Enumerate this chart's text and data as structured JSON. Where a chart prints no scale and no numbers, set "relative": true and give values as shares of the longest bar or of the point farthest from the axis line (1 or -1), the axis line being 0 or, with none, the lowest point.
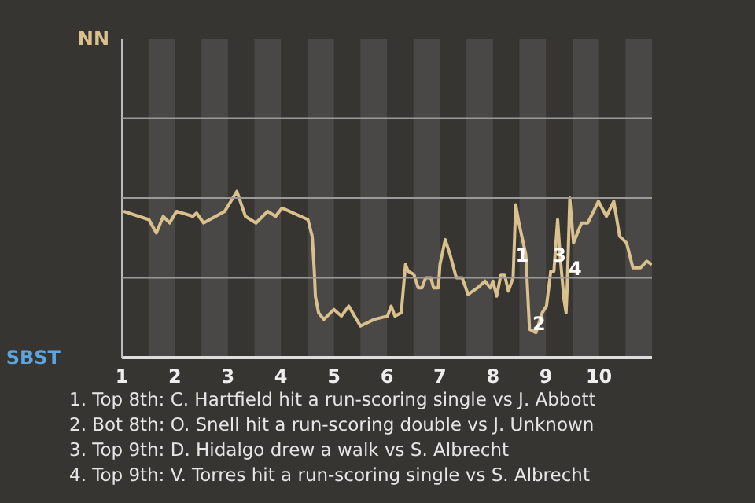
{
  "chart_data": {
    "type": "line",
    "relative": true,
    "xlim": [
      1,
      11
    ],
    "xticks": [
      1,
      2,
      3,
      4,
      5,
      6,
      7,
      8,
      9,
      10
    ],
    "ref_lines": [
      {
        "axis": "y",
        "value": 0.48,
        "color": "#9a9a9a"
      },
      {
        "axis": "y",
        "value": 0.96,
        "color": "#9a9a9a"
      },
      {
        "axis": "y",
        "value": 1.44,
        "color": "#9a9a9a"
      },
      {
        "axis": "y",
        "value": 1.92,
        "color": "#9a9a9a"
      }
    ],
    "series": [
      {
        "color": "#d9c08c",
        "x": [
          1.03,
          1.51,
          1.65,
          1.78,
          1.9,
          2.03,
          2.34,
          2.41,
          2.54,
          2.94,
          3.17,
          3.33,
          3.53,
          3.75,
          3.9,
          4.02,
          4.51,
          4.59,
          4.63,
          4.65,
          4.71,
          4.81,
          5.0,
          5.14,
          5.28,
          5.5,
          5.76,
          6.01,
          6.08,
          6.15,
          6.27,
          6.35,
          6.4,
          6.51,
          6.59,
          6.66,
          6.73,
          6.83,
          6.88,
          6.97,
          7.0,
          7.1,
          7.19,
          7.31,
          7.42,
          7.53,
          7.71,
          7.85,
          7.95,
          8.0,
          8.07,
          8.15,
          8.22,
          8.29,
          8.38,
          8.43,
          8.49,
          8.62,
          8.69,
          8.81,
          8.93,
          9.01,
          9.09,
          9.15,
          9.22,
          9.27,
          9.34,
          9.38,
          9.4,
          9.45,
          9.52,
          9.67,
          9.79,
          9.99,
          10.14,
          10.28,
          10.39,
          10.52,
          10.64,
          10.78,
          10.9,
          11.0
        ],
        "values": [
          0.88,
          0.83,
          0.75,
          0.85,
          0.81,
          0.88,
          0.85,
          0.87,
          0.81,
          0.88,
          1,
          0.85,
          0.81,
          0.88,
          0.85,
          0.9,
          0.83,
          0.73,
          0.52,
          0.37,
          0.27,
          0.23,
          0.29,
          0.25,
          0.31,
          0.19,
          0.23,
          0.25,
          0.31,
          0.25,
          0.27,
          0.56,
          0.52,
          0.5,
          0.42,
          0.42,
          0.48,
          0.48,
          0.42,
          0.42,
          0.56,
          0.71,
          0.62,
          0.48,
          0.48,
          0.38,
          0.42,
          0.46,
          0.42,
          0.46,
          0.37,
          0.5,
          0.5,
          0.4,
          0.48,
          0.92,
          0.81,
          0.62,
          0.17,
          0.15,
          0.27,
          0.31,
          0.52,
          0.52,
          0.83,
          0.6,
          0.35,
          0.27,
          0.42,
          0.96,
          0.69,
          0.81,
          0.81,
          0.94,
          0.85,
          0.94,
          0.73,
          0.69,
          0.54,
          0.54,
          0.58,
          0.56
        ],
        "line_style": "solid"
      }
    ],
    "bands": [
      {
        "axis": "x",
        "from": 1.5,
        "to": 2,
        "color": "#4a4846"
      },
      {
        "axis": "x",
        "from": 2.5,
        "to": 3,
        "color": "#4a4846"
      },
      {
        "axis": "x",
        "from": 3.5,
        "to": 4,
        "color": "#4a4846"
      },
      {
        "axis": "x",
        "from": 4.5,
        "to": 5,
        "color": "#4a4846"
      },
      {
        "axis": "x",
        "from": 5.5,
        "to": 6,
        "color": "#4a4846"
      },
      {
        "axis": "x",
        "from": 6.5,
        "to": 7,
        "color": "#4a4846"
      },
      {
        "axis": "x",
        "from": 7.5,
        "to": 8,
        "color": "#4a4846"
      },
      {
        "axis": "x",
        "from": 8.5,
        "to": 9,
        "color": "#4a4846"
      },
      {
        "axis": "x",
        "from": 9.5,
        "to": 10,
        "color": "#4a4846"
      },
      {
        "axis": "x",
        "from": 10.5,
        "to": 11,
        "color": "#4a4846"
      }
    ],
    "annotations": [
      "NN",
      "SBST",
      {
        "text": "1",
        "x": 8.55,
        "y": 0.62
      },
      {
        "text": "2",
        "x": 8.87,
        "y": 0.21
      },
      {
        "text": "3",
        "x": 9.26,
        "y": 0.62
      },
      {
        "text": "4",
        "x": 9.55,
        "y": 0.54
      },
      "1. Top 8th: C. Hartfield hit a run-scoring single vs J. Abbott",
      "2. Bot 8th: O. Snell hit a run-scoring double vs J. Unknown",
      "3. Top 9th: D. Hidalgo drew a walk vs S. Albrecht",
      "4. Top 9th: V. Torres hit a run-scoring single vs S. Albrecht"
    ]
  }
}
